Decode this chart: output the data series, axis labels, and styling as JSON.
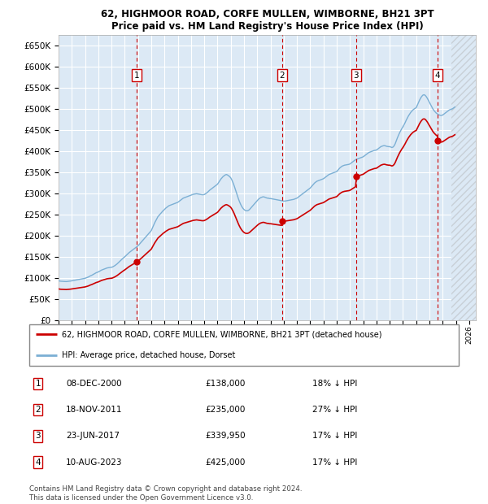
{
  "title1": "62, HIGHMOOR ROAD, CORFE MULLEN, WIMBORNE, BH21 3PT",
  "title2": "Price paid vs. HM Land Registry's House Price Index (HPI)",
  "yticks": [
    0,
    50000,
    100000,
    150000,
    200000,
    250000,
    300000,
    350000,
    400000,
    450000,
    500000,
    550000,
    600000,
    650000
  ],
  "xlim_start": 1995.0,
  "xlim_end": 2026.5,
  "ylim": [
    0,
    675000
  ],
  "plot_bg_color": "#dce9f5",
  "grid_color": "#ffffff",
  "hpi_line_color": "#7bafd4",
  "price_line_color": "#cc0000",
  "sale_marker_color": "#cc0000",
  "sale_box_color": "#cc0000",
  "transactions": [
    {
      "num": 1,
      "year": 2000.92,
      "price": 138000
    },
    {
      "num": 2,
      "year": 2011.88,
      "price": 235000
    },
    {
      "num": 3,
      "year": 2017.47,
      "price": 339950
    },
    {
      "num": 4,
      "year": 2023.6,
      "price": 425000
    }
  ],
  "legend_entries": [
    "62, HIGHMOOR ROAD, CORFE MULLEN, WIMBORNE, BH21 3PT (detached house)",
    "HPI: Average price, detached house, Dorset"
  ],
  "table_rows": [
    [
      "1",
      "08-DEC-2000",
      "£138,000",
      "18% ↓ HPI"
    ],
    [
      "2",
      "18-NOV-2011",
      "£235,000",
      "27% ↓ HPI"
    ],
    [
      "3",
      "23-JUN-2017",
      "£339,950",
      "17% ↓ HPI"
    ],
    [
      "4",
      "10-AUG-2023",
      "£425,000",
      "17% ↓ HPI"
    ]
  ],
  "footer": "Contains HM Land Registry data © Crown copyright and database right 2024.\nThis data is licensed under the Open Government Licence v3.0.",
  "future_start": 2024.67,
  "hpi_data": [
    [
      1995.0,
      93000
    ],
    [
      1995.083,
      92500
    ],
    [
      1995.167,
      92000
    ],
    [
      1995.25,
      91800
    ],
    [
      1995.333,
      91500
    ],
    [
      1995.417,
      91200
    ],
    [
      1995.5,
      91000
    ],
    [
      1995.583,
      91200
    ],
    [
      1995.667,
      91500
    ],
    [
      1995.75,
      91800
    ],
    [
      1995.833,
      92000
    ],
    [
      1995.917,
      92500
    ],
    [
      1996.0,
      93000
    ],
    [
      1996.083,
      93500
    ],
    [
      1996.167,
      94000
    ],
    [
      1996.25,
      94500
    ],
    [
      1996.333,
      95000
    ],
    [
      1996.417,
      95500
    ],
    [
      1996.5,
      96000
    ],
    [
      1996.583,
      96500
    ],
    [
      1996.667,
      97000
    ],
    [
      1996.75,
      97500
    ],
    [
      1996.833,
      98000
    ],
    [
      1996.917,
      98500
    ],
    [
      1997.0,
      99000
    ],
    [
      1997.083,
      100000
    ],
    [
      1997.167,
      101000
    ],
    [
      1997.25,
      102000
    ],
    [
      1997.333,
      103500
    ],
    [
      1997.417,
      105000
    ],
    [
      1997.5,
      106000
    ],
    [
      1997.583,
      107500
    ],
    [
      1997.667,
      109000
    ],
    [
      1997.75,
      110500
    ],
    [
      1997.833,
      112000
    ],
    [
      1997.917,
      113000
    ],
    [
      1998.0,
      114000
    ],
    [
      1998.083,
      115500
    ],
    [
      1998.167,
      117000
    ],
    [
      1998.25,
      118500
    ],
    [
      1998.333,
      119500
    ],
    [
      1998.417,
      120500
    ],
    [
      1998.5,
      121500
    ],
    [
      1998.583,
      122500
    ],
    [
      1998.667,
      123500
    ],
    [
      1998.75,
      124000
    ],
    [
      1998.833,
      124500
    ],
    [
      1998.917,
      124800
    ],
    [
      1999.0,
      125000
    ],
    [
      1999.083,
      126000
    ],
    [
      1999.167,
      127500
    ],
    [
      1999.25,
      129000
    ],
    [
      1999.333,
      131000
    ],
    [
      1999.417,
      133000
    ],
    [
      1999.5,
      135500
    ],
    [
      1999.583,
      138000
    ],
    [
      1999.667,
      140500
    ],
    [
      1999.75,
      143000
    ],
    [
      1999.833,
      145500
    ],
    [
      1999.917,
      148000
    ],
    [
      2000.0,
      150000
    ],
    [
      2000.083,
      152500
    ],
    [
      2000.167,
      155000
    ],
    [
      2000.25,
      157500
    ],
    [
      2000.333,
      160000
    ],
    [
      2000.417,
      162000
    ],
    [
      2000.5,
      164000
    ],
    [
      2000.583,
      166000
    ],
    [
      2000.667,
      168000
    ],
    [
      2000.75,
      170000
    ],
    [
      2000.833,
      172000
    ],
    [
      2000.917,
      174000
    ],
    [
      2001.0,
      176000
    ],
    [
      2001.083,
      179000
    ],
    [
      2001.167,
      182000
    ],
    [
      2001.25,
      185000
    ],
    [
      2001.333,
      188000
    ],
    [
      2001.417,
      191000
    ],
    [
      2001.5,
      194000
    ],
    [
      2001.583,
      197000
    ],
    [
      2001.667,
      200000
    ],
    [
      2001.75,
      203000
    ],
    [
      2001.833,
      206000
    ],
    [
      2001.917,
      209000
    ],
    [
      2002.0,
      212000
    ],
    [
      2002.083,
      218000
    ],
    [
      2002.167,
      224000
    ],
    [
      2002.25,
      230000
    ],
    [
      2002.333,
      235000
    ],
    [
      2002.417,
      240000
    ],
    [
      2002.5,
      245000
    ],
    [
      2002.583,
      248000
    ],
    [
      2002.667,
      251000
    ],
    [
      2002.75,
      254000
    ],
    [
      2002.833,
      257000
    ],
    [
      2002.917,
      260000
    ],
    [
      2003.0,
      262000
    ],
    [
      2003.083,
      265000
    ],
    [
      2003.167,
      267000
    ],
    [
      2003.25,
      269000
    ],
    [
      2003.333,
      271000
    ],
    [
      2003.417,
      272000
    ],
    [
      2003.5,
      273000
    ],
    [
      2003.583,
      274000
    ],
    [
      2003.667,
      275000
    ],
    [
      2003.75,
      276000
    ],
    [
      2003.833,
      277000
    ],
    [
      2003.917,
      278000
    ],
    [
      2004.0,
      279000
    ],
    [
      2004.083,
      281000
    ],
    [
      2004.167,
      283000
    ],
    [
      2004.25,
      285000
    ],
    [
      2004.333,
      287000
    ],
    [
      2004.417,
      289000
    ],
    [
      2004.5,
      290000
    ],
    [
      2004.583,
      291000
    ],
    [
      2004.667,
      292000
    ],
    [
      2004.75,
      293000
    ],
    [
      2004.833,
      294000
    ],
    [
      2004.917,
      295000
    ],
    [
      2005.0,
      296000
    ],
    [
      2005.083,
      297000
    ],
    [
      2005.167,
      298000
    ],
    [
      2005.25,
      298500
    ],
    [
      2005.333,
      299000
    ],
    [
      2005.417,
      299500
    ],
    [
      2005.5,
      299000
    ],
    [
      2005.583,
      298500
    ],
    [
      2005.667,
      298000
    ],
    [
      2005.75,
      297500
    ],
    [
      2005.833,
      297000
    ],
    [
      2005.917,
      297000
    ],
    [
      2006.0,
      297500
    ],
    [
      2006.083,
      299000
    ],
    [
      2006.167,
      301000
    ],
    [
      2006.25,
      303000
    ],
    [
      2006.333,
      305500
    ],
    [
      2006.417,
      308000
    ],
    [
      2006.5,
      310000
    ],
    [
      2006.583,
      312000
    ],
    [
      2006.667,
      314000
    ],
    [
      2006.75,
      316000
    ],
    [
      2006.833,
      318000
    ],
    [
      2006.917,
      320000
    ],
    [
      2007.0,
      322000
    ],
    [
      2007.083,
      326000
    ],
    [
      2007.167,
      330000
    ],
    [
      2007.25,
      334000
    ],
    [
      2007.333,
      337000
    ],
    [
      2007.417,
      340000
    ],
    [
      2007.5,
      342000
    ],
    [
      2007.583,
      344000
    ],
    [
      2007.667,
      345000
    ],
    [
      2007.75,
      344000
    ],
    [
      2007.833,
      342000
    ],
    [
      2007.917,
      340000
    ],
    [
      2008.0,
      337000
    ],
    [
      2008.083,
      332000
    ],
    [
      2008.167,
      326000
    ],
    [
      2008.25,
      319000
    ],
    [
      2008.333,
      311000
    ],
    [
      2008.417,
      303000
    ],
    [
      2008.5,
      295000
    ],
    [
      2008.583,
      287000
    ],
    [
      2008.667,
      280000
    ],
    [
      2008.75,
      274000
    ],
    [
      2008.833,
      269000
    ],
    [
      2008.917,
      265000
    ],
    [
      2009.0,
      262000
    ],
    [
      2009.083,
      260000
    ],
    [
      2009.167,
      259000
    ],
    [
      2009.25,
      259000
    ],
    [
      2009.333,
      260000
    ],
    [
      2009.417,
      262000
    ],
    [
      2009.5,
      265000
    ],
    [
      2009.583,
      268000
    ],
    [
      2009.667,
      271000
    ],
    [
      2009.75,
      274000
    ],
    [
      2009.833,
      277000
    ],
    [
      2009.917,
      280000
    ],
    [
      2010.0,
      283000
    ],
    [
      2010.083,
      286000
    ],
    [
      2010.167,
      288000
    ],
    [
      2010.25,
      290000
    ],
    [
      2010.333,
      291000
    ],
    [
      2010.417,
      292000
    ],
    [
      2010.5,
      292000
    ],
    [
      2010.583,
      291000
    ],
    [
      2010.667,
      290000
    ],
    [
      2010.75,
      289000
    ],
    [
      2010.833,
      289000
    ],
    [
      2010.917,
      288000
    ],
    [
      2011.0,
      288000
    ],
    [
      2011.083,
      287500
    ],
    [
      2011.167,
      287000
    ],
    [
      2011.25,
      286500
    ],
    [
      2011.333,
      286000
    ],
    [
      2011.417,
      285500
    ],
    [
      2011.5,
      285000
    ],
    [
      2011.583,
      284500
    ],
    [
      2011.667,
      284000
    ],
    [
      2011.75,
      283500
    ],
    [
      2011.833,
      283000
    ],
    [
      2011.917,
      282500
    ],
    [
      2012.0,
      282000
    ],
    [
      2012.083,
      282000
    ],
    [
      2012.167,
      282500
    ],
    [
      2012.25,
      283000
    ],
    [
      2012.333,
      283500
    ],
    [
      2012.417,
      284000
    ],
    [
      2012.5,
      284500
    ],
    [
      2012.583,
      285000
    ],
    [
      2012.667,
      285500
    ],
    [
      2012.75,
      286000
    ],
    [
      2012.833,
      287000
    ],
    [
      2012.917,
      288000
    ],
    [
      2013.0,
      289000
    ],
    [
      2013.083,
      291000
    ],
    [
      2013.167,
      293000
    ],
    [
      2013.25,
      295000
    ],
    [
      2013.333,
      297000
    ],
    [
      2013.417,
      299000
    ],
    [
      2013.5,
      301000
    ],
    [
      2013.583,
      303000
    ],
    [
      2013.667,
      305000
    ],
    [
      2013.75,
      307000
    ],
    [
      2013.833,
      309000
    ],
    [
      2013.917,
      311000
    ],
    [
      2014.0,
      313000
    ],
    [
      2014.083,
      316000
    ],
    [
      2014.167,
      319000
    ],
    [
      2014.25,
      322000
    ],
    [
      2014.333,
      325000
    ],
    [
      2014.417,
      327000
    ],
    [
      2014.5,
      329000
    ],
    [
      2014.583,
      330000
    ],
    [
      2014.667,
      331000
    ],
    [
      2014.75,
      332000
    ],
    [
      2014.833,
      333000
    ],
    [
      2014.917,
      334000
    ],
    [
      2015.0,
      335000
    ],
    [
      2015.083,
      337000
    ],
    [
      2015.167,
      339000
    ],
    [
      2015.25,
      341000
    ],
    [
      2015.333,
      343000
    ],
    [
      2015.417,
      345000
    ],
    [
      2015.5,
      346000
    ],
    [
      2015.583,
      347000
    ],
    [
      2015.667,
      348000
    ],
    [
      2015.75,
      349000
    ],
    [
      2015.833,
      350000
    ],
    [
      2015.917,
      351000
    ],
    [
      2016.0,
      352000
    ],
    [
      2016.083,
      355000
    ],
    [
      2016.167,
      358000
    ],
    [
      2016.25,
      361000
    ],
    [
      2016.333,
      363000
    ],
    [
      2016.417,
      365000
    ],
    [
      2016.5,
      366000
    ],
    [
      2016.583,
      367000
    ],
    [
      2016.667,
      367500
    ],
    [
      2016.75,
      368000
    ],
    [
      2016.833,
      368500
    ],
    [
      2016.917,
      369000
    ],
    [
      2017.0,
      370000
    ],
    [
      2017.083,
      372000
    ],
    [
      2017.167,
      374000
    ],
    [
      2017.25,
      376000
    ],
    [
      2017.333,
      378000
    ],
    [
      2017.417,
      380000
    ],
    [
      2017.5,
      381000
    ],
    [
      2017.583,
      382000
    ],
    [
      2017.667,
      383000
    ],
    [
      2017.75,
      384000
    ],
    [
      2017.833,
      385000
    ],
    [
      2017.917,
      386000
    ],
    [
      2018.0,
      387000
    ],
    [
      2018.083,
      389000
    ],
    [
      2018.167,
      391000
    ],
    [
      2018.25,
      393000
    ],
    [
      2018.333,
      395000
    ],
    [
      2018.417,
      397000
    ],
    [
      2018.5,
      398000
    ],
    [
      2018.583,
      399000
    ],
    [
      2018.667,
      400000
    ],
    [
      2018.75,
      401000
    ],
    [
      2018.833,
      402000
    ],
    [
      2018.917,
      402500
    ],
    [
      2019.0,
      403000
    ],
    [
      2019.083,
      405000
    ],
    [
      2019.167,
      407000
    ],
    [
      2019.25,
      409000
    ],
    [
      2019.333,
      411000
    ],
    [
      2019.417,
      412000
    ],
    [
      2019.5,
      413000
    ],
    [
      2019.583,
      413500
    ],
    [
      2019.667,
      413000
    ],
    [
      2019.75,
      412000
    ],
    [
      2019.833,
      411500
    ],
    [
      2019.917,
      411000
    ],
    [
      2020.0,
      411000
    ],
    [
      2020.083,
      410000
    ],
    [
      2020.167,
      409000
    ],
    [
      2020.25,
      410000
    ],
    [
      2020.333,
      413000
    ],
    [
      2020.417,
      418000
    ],
    [
      2020.5,
      425000
    ],
    [
      2020.583,
      432000
    ],
    [
      2020.667,
      438000
    ],
    [
      2020.75,
      444000
    ],
    [
      2020.833,
      449000
    ],
    [
      2020.917,
      454000
    ],
    [
      2021.0,
      458000
    ],
    [
      2021.083,
      463000
    ],
    [
      2021.167,
      468000
    ],
    [
      2021.25,
      474000
    ],
    [
      2021.333,
      479000
    ],
    [
      2021.417,
      484000
    ],
    [
      2021.5,
      488000
    ],
    [
      2021.583,
      492000
    ],
    [
      2021.667,
      495000
    ],
    [
      2021.75,
      498000
    ],
    [
      2021.833,
      500000
    ],
    [
      2021.917,
      502000
    ],
    [
      2022.0,
      503000
    ],
    [
      2022.083,
      509000
    ],
    [
      2022.167,
      515000
    ],
    [
      2022.25,
      521000
    ],
    [
      2022.333,
      526000
    ],
    [
      2022.417,
      530000
    ],
    [
      2022.5,
      533000
    ],
    [
      2022.583,
      534000
    ],
    [
      2022.667,
      533000
    ],
    [
      2022.75,
      530000
    ],
    [
      2022.833,
      526000
    ],
    [
      2022.917,
      521000
    ],
    [
      2023.0,
      516000
    ],
    [
      2023.083,
      511000
    ],
    [
      2023.167,
      506000
    ],
    [
      2023.25,
      501000
    ],
    [
      2023.333,
      497000
    ],
    [
      2023.417,
      494000
    ],
    [
      2023.5,
      491000
    ],
    [
      2023.583,
      489000
    ],
    [
      2023.667,
      487000
    ],
    [
      2023.75,
      486000
    ],
    [
      2023.833,
      485000
    ],
    [
      2023.917,
      485000
    ],
    [
      2024.0,
      486000
    ],
    [
      2024.083,
      488000
    ],
    [
      2024.167,
      490000
    ],
    [
      2024.25,
      492000
    ],
    [
      2024.333,
      494000
    ],
    [
      2024.417,
      496000
    ],
    [
      2024.5,
      498000
    ],
    [
      2024.583,
      499000
    ],
    [
      2024.667,
      500000
    ],
    [
      2024.75,
      501000
    ],
    [
      2024.833,
      503000
    ],
    [
      2024.917,
      505000
    ]
  ]
}
